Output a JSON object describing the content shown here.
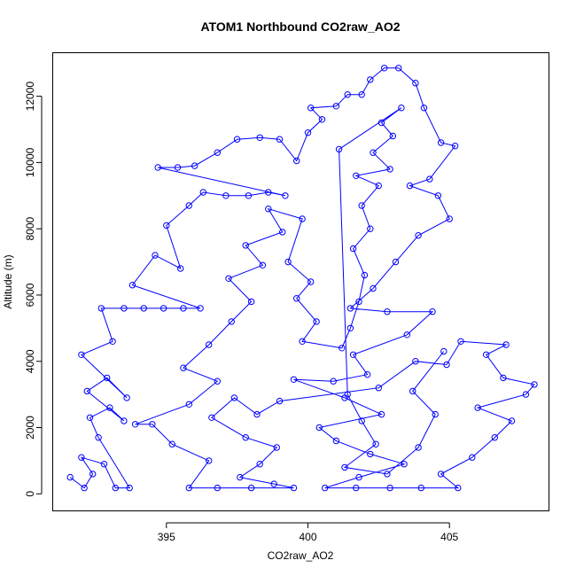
{
  "chart_data": {
    "type": "scatter",
    "title": "ATOM1 Northbound CO2raw_AO2",
    "xlabel": "CO2raw_AO2",
    "ylabel": "Altitude (m)",
    "xlim": [
      391,
      408.5
    ],
    "ylim": [
      -500,
      13300
    ],
    "x_ticks": [
      "395",
      "400",
      "405"
    ],
    "y_ticks": [
      "0",
      "2000",
      "4000",
      "6000",
      "8000",
      "10000",
      "12000"
    ],
    "series_color": "#0000ff",
    "marker": "open-circle",
    "connected": true,
    "grid": false,
    "legend": "none",
    "series": [
      {
        "points": [
          [
            391.6,
            500
          ],
          [
            392.1,
            180
          ],
          [
            392.4,
            600
          ],
          [
            392.0,
            1100
          ],
          [
            392.8,
            900
          ],
          [
            393.2,
            180
          ],
          [
            393.7,
            180
          ],
          [
            392.6,
            1700
          ],
          [
            392.3,
            2300
          ],
          [
            393.0,
            2600
          ],
          [
            393.5,
            2200
          ],
          [
            392.2,
            3100
          ],
          [
            392.9,
            3500
          ],
          [
            393.6,
            2900
          ],
          [
            392.0,
            4200
          ],
          [
            393.1,
            4600
          ],
          [
            392.7,
            5600
          ],
          [
            393.5,
            5600
          ],
          [
            394.2,
            5600
          ],
          [
            394.9,
            5600
          ],
          [
            395.6,
            5600
          ],
          [
            396.2,
            5600
          ],
          [
            393.8,
            6300
          ],
          [
            394.6,
            7200
          ],
          [
            395.5,
            6800
          ],
          [
            395.0,
            8100
          ],
          [
            395.8,
            8700
          ],
          [
            396.3,
            9100
          ],
          [
            397.1,
            9000
          ],
          [
            397.9,
            9000
          ],
          [
            398.6,
            9100
          ],
          [
            399.2,
            9000
          ],
          [
            394.7,
            9850
          ],
          [
            395.4,
            9850
          ],
          [
            396.0,
            9900
          ],
          [
            396.8,
            10300
          ],
          [
            397.5,
            10700
          ],
          [
            398.3,
            10750
          ],
          [
            399.0,
            10700
          ],
          [
            399.6,
            10050
          ],
          [
            400.0,
            10900
          ],
          [
            400.5,
            11300
          ],
          [
            400.1,
            11650
          ],
          [
            401.0,
            11700
          ],
          [
            401.4,
            12050
          ],
          [
            401.9,
            12050
          ],
          [
            402.2,
            12500
          ],
          [
            402.7,
            12850
          ],
          [
            403.2,
            12850
          ],
          [
            403.8,
            12400
          ],
          [
            404.1,
            11650
          ],
          [
            404.7,
            10600
          ],
          [
            405.2,
            10500
          ],
          [
            404.3,
            9500
          ],
          [
            403.6,
            9300
          ],
          [
            404.6,
            9000
          ],
          [
            405.0,
            8300
          ],
          [
            403.9,
            7800
          ],
          [
            403.1,
            7000
          ],
          [
            402.3,
            6200
          ],
          [
            401.5,
            5600
          ],
          [
            402.8,
            5500
          ],
          [
            404.4,
            5500
          ],
          [
            403.5,
            4800
          ],
          [
            401.6,
            4200
          ],
          [
            402.1,
            3600
          ],
          [
            400.9,
            3400
          ],
          [
            399.5,
            3450
          ],
          [
            401.3,
            2900
          ],
          [
            402.6,
            2400
          ],
          [
            400.4,
            2000
          ],
          [
            401.0,
            1600
          ],
          [
            402.2,
            1200
          ],
          [
            403.4,
            900
          ],
          [
            401.8,
            500
          ],
          [
            400.6,
            180
          ],
          [
            401.7,
            180
          ],
          [
            402.9,
            180
          ],
          [
            404.0,
            180
          ],
          [
            405.3,
            180
          ],
          [
            404.7,
            600
          ],
          [
            405.8,
            1100
          ],
          [
            406.6,
            1700
          ],
          [
            407.2,
            2200
          ],
          [
            406.0,
            2600
          ],
          [
            407.7,
            3000
          ],
          [
            408.0,
            3300
          ],
          [
            406.9,
            3500
          ],
          [
            406.3,
            4200
          ],
          [
            407.0,
            4500
          ],
          [
            405.4,
            4600
          ],
          [
            404.9,
            3900
          ],
          [
            403.8,
            4000
          ],
          [
            402.5,
            3200
          ],
          [
            399.0,
            2800
          ],
          [
            398.2,
            2400
          ],
          [
            397.4,
            2900
          ],
          [
            396.6,
            2300
          ],
          [
            397.8,
            1700
          ],
          [
            398.9,
            1400
          ],
          [
            398.3,
            900
          ],
          [
            397.6,
            500
          ],
          [
            398.8,
            300
          ],
          [
            399.5,
            180
          ],
          [
            398.0,
            180
          ],
          [
            396.8,
            180
          ],
          [
            395.8,
            180
          ],
          [
            396.5,
            1000
          ],
          [
            395.2,
            1500
          ],
          [
            394.5,
            2100
          ],
          [
            393.9,
            2100
          ],
          [
            395.8,
            2700
          ],
          [
            396.8,
            3400
          ],
          [
            395.6,
            3800
          ],
          [
            396.5,
            4500
          ],
          [
            397.3,
            5200
          ],
          [
            398.0,
            5800
          ],
          [
            397.2,
            6500
          ],
          [
            398.4,
            6900
          ],
          [
            397.8,
            7500
          ],
          [
            399.1,
            7900
          ],
          [
            398.6,
            8600
          ],
          [
            399.8,
            8300
          ],
          [
            399.3,
            7000
          ],
          [
            400.1,
            6400
          ],
          [
            399.6,
            5900
          ],
          [
            400.3,
            5200
          ],
          [
            399.8,
            4600
          ],
          [
            401.2,
            4400
          ],
          [
            401.5,
            5000
          ],
          [
            401.8,
            5800
          ],
          [
            402.0,
            6600
          ],
          [
            401.6,
            7400
          ],
          [
            402.2,
            8000
          ],
          [
            401.9,
            8700
          ],
          [
            402.5,
            9300
          ],
          [
            401.7,
            9600
          ],
          [
            402.9,
            9800
          ],
          [
            402.3,
            10300
          ],
          [
            403.0,
            10800
          ],
          [
            402.6,
            11200
          ],
          [
            403.3,
            11650
          ],
          [
            401.1,
            10400
          ],
          [
            401.4,
            3000
          ],
          [
            401.9,
            2200
          ],
          [
            402.4,
            1500
          ],
          [
            401.3,
            800
          ],
          [
            402.8,
            600
          ],
          [
            403.9,
            1400
          ],
          [
            404.5,
            2400
          ],
          [
            403.7,
            3100
          ],
          [
            404.8,
            4300
          ]
        ]
      }
    ]
  }
}
